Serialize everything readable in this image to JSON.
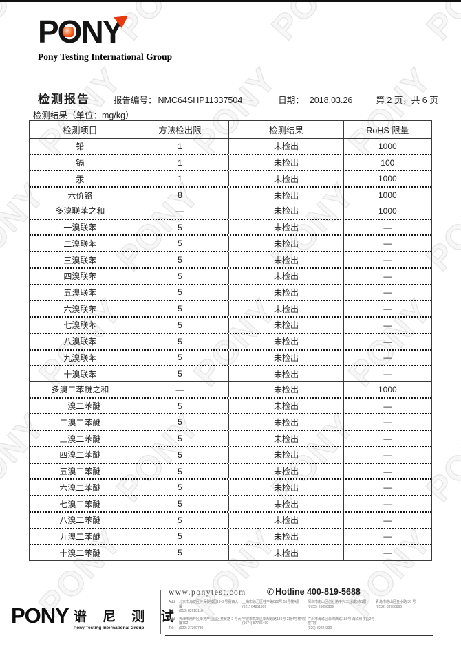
{
  "watermark": {
    "text": "PONY"
  },
  "header_logo": {
    "word": "PONY",
    "subtitle": "Pony Testing International Group"
  },
  "report_header": {
    "title": "检测报告",
    "report_no_label": "报告编号：",
    "report_no": "NMC64SHP11337504",
    "date_label": "日期：",
    "date": "2018.03.26",
    "page_info": "第 2 页，共 6 页",
    "unit_line": "检测结果（单位：mg/kg）"
  },
  "table": {
    "headers": [
      "检测项目",
      "方法检出限",
      "检测结果",
      "RoHS 限量"
    ],
    "rows": [
      {
        "cells": [
          "铅",
          "1",
          "未检出",
          "1000"
        ],
        "sep": "none"
      },
      {
        "cells": [
          "镉",
          "1",
          "未检出",
          "100"
        ],
        "sep": "dotted"
      },
      {
        "cells": [
          "汞",
          "1",
          "未检出",
          "1000"
        ],
        "sep": "dotted"
      },
      {
        "cells": [
          "六价铬",
          "8",
          "未检出",
          "1000"
        ],
        "sep": "dotted"
      },
      {
        "cells": [
          "多溴联苯之和",
          "—",
          "未检出",
          "1000"
        ],
        "sep": "solid"
      },
      {
        "cells": [
          "一溴联苯",
          "5",
          "未检出",
          "—"
        ],
        "sep": "dotted"
      },
      {
        "cells": [
          "二溴联苯",
          "5",
          "未检出",
          "—"
        ],
        "sep": "dotted"
      },
      {
        "cells": [
          "三溴联苯",
          "5",
          "未检出",
          "—"
        ],
        "sep": "dotted"
      },
      {
        "cells": [
          "四溴联苯",
          "5",
          "未检出",
          "—"
        ],
        "sep": "dotted"
      },
      {
        "cells": [
          "五溴联苯",
          "5",
          "未检出",
          "—"
        ],
        "sep": "dotted"
      },
      {
        "cells": [
          "六溴联苯",
          "5",
          "未检出",
          "—"
        ],
        "sep": "dotted"
      },
      {
        "cells": [
          "七溴联苯",
          "5",
          "未检出",
          "—"
        ],
        "sep": "dotted"
      },
      {
        "cells": [
          "八溴联苯",
          "5",
          "未检出",
          "—"
        ],
        "sep": "dotted"
      },
      {
        "cells": [
          "九溴联苯",
          "5",
          "未检出",
          "—"
        ],
        "sep": "dotted"
      },
      {
        "cells": [
          "十溴联苯",
          "5",
          "未检出",
          "—"
        ],
        "sep": "dotted"
      },
      {
        "cells": [
          "多溴二苯醚之和",
          "—",
          "未检出",
          "1000"
        ],
        "sep": "solid"
      },
      {
        "cells": [
          "一溴二苯醚",
          "5",
          "未检出",
          "—"
        ],
        "sep": "dotted"
      },
      {
        "cells": [
          "二溴二苯醚",
          "5",
          "未检出",
          "—"
        ],
        "sep": "dotted"
      },
      {
        "cells": [
          "三溴二苯醚",
          "5",
          "未检出",
          "—"
        ],
        "sep": "dotted"
      },
      {
        "cells": [
          "四溴二苯醚",
          "5",
          "未检出",
          "—"
        ],
        "sep": "dotted"
      },
      {
        "cells": [
          "五溴二苯醚",
          "5",
          "未检出",
          "—"
        ],
        "sep": "dotted"
      },
      {
        "cells": [
          "六溴二苯醚",
          "5",
          "未检出",
          "—"
        ],
        "sep": "dotted"
      },
      {
        "cells": [
          "七溴二苯醚",
          "5",
          "未检出",
          "—"
        ],
        "sep": "dotted"
      },
      {
        "cells": [
          "八溴二苯醚",
          "5",
          "未检出",
          "—"
        ],
        "sep": "dotted"
      },
      {
        "cells": [
          "九溴二苯醚",
          "5",
          "未检出",
          "—"
        ],
        "sep": "dotted"
      },
      {
        "cells": [
          "十溴二苯醚",
          "5",
          "未检出",
          "—"
        ],
        "sep": "dotted"
      }
    ]
  },
  "footer": {
    "logo_word": "PONY",
    "logo_cn": "谱 尼 测 试",
    "logo_en": "Pony Testing International Group",
    "website": "www.ponytest.com",
    "phone_icon": "✆",
    "hotline": "Hotline 400-819-5688",
    "address_rows": [
      [
        {
          "add_label": "Add:",
          "add": "北京市海淀区环保科技园19-3 号赛西大厦",
          "tel_label": "Tel:",
          "tel": "(010) 82618116"
        },
        {
          "add": "上海市徐汇区桂平路680号 55号楼4层",
          "tel": "(021) 64851999"
        },
        {
          "add": "深圳市南山区创业路中兴工业城6栋1层",
          "tel": "(0755) 26050909"
        },
        {
          "add": "青岛市崂山区金水路 36 号",
          "tel": "(0532) 88706866"
        }
      ],
      [
        {
          "add_label": "Add:",
          "add": "天津市南开区华苑产业园区奥赛路 2 号大厦702",
          "tel_label": "Tel:",
          "tel": "(022) 27360730"
        },
        {
          "add": "宁波市高新区新规划路136号 2期4号楼4层",
          "tel": "(0574) 87736499"
        },
        {
          "add": "广州市海珠区赤岗西路189号 海珠科技园2号楼7层",
          "tel": "(020) 89224330"
        }
      ]
    ]
  }
}
